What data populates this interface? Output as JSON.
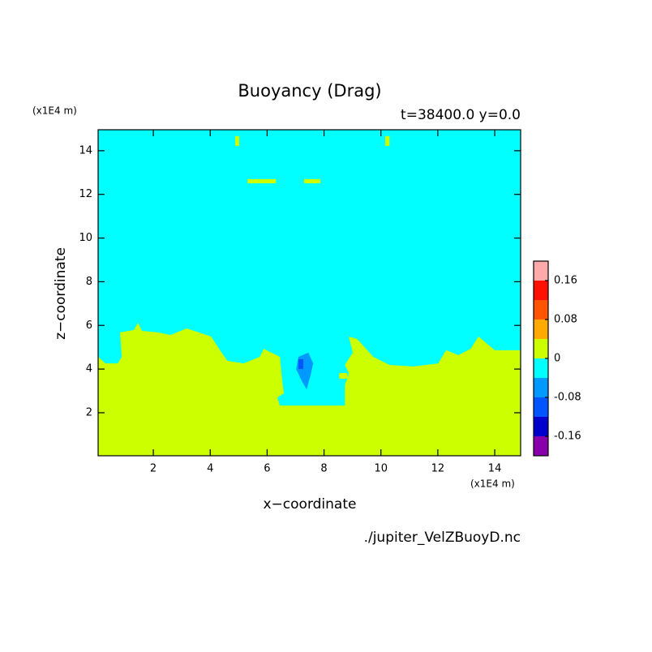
{
  "chart_data": {
    "type": "contour",
    "title": "Buoyancy (Drag)",
    "subtitle": "t=38400.0 y=0.0",
    "x_label": "x−coordinate",
    "y_label": "z−coordinate",
    "x_unit": "(x1E4 m)",
    "y_unit": "(x1E4 m)",
    "footer": "./jupiter_VelZBuoyD.nc",
    "xlim": [
      0.06,
      14.91
    ],
    "ylim": [
      0.03,
      14.96
    ],
    "xticks": [
      2,
      4,
      6,
      8,
      10,
      12,
      14
    ],
    "yticks": [
      2,
      4,
      6,
      8,
      10,
      12,
      14
    ],
    "levels": [
      -0.2,
      -0.16,
      -0.12,
      -0.08,
      -0.04,
      0,
      0.04,
      0.08,
      0.12,
      0.16,
      0.2
    ],
    "colors": [
      "#8800aa",
      "#0000cc",
      "#0055ff",
      "#0099ff",
      "#00ffff",
      "#ccff00",
      "#ffaa00",
      "#ff5500",
      "#ff1100",
      "#ffaaaa"
    ],
    "colorbar_ticks": [
      0.16,
      0.08,
      0,
      -0.08,
      -0.16
    ],
    "regions": [
      {
        "range": [
          -0.04,
          0
        ],
        "polygon": [
          [
            0.06,
            0.03
          ],
          [
            14.91,
            0.03
          ],
          [
            14.91,
            14.96
          ],
          [
            0.06,
            14.96
          ]
        ]
      },
      {
        "range": [
          0,
          0.04
        ],
        "polygon": [
          [
            0.06,
            4.56
          ],
          [
            0.32,
            4.26
          ],
          [
            0.75,
            4.26
          ],
          [
            0.89,
            4.56
          ],
          [
            0.83,
            5.68
          ],
          [
            1.32,
            5.79
          ],
          [
            1.46,
            6.12
          ],
          [
            1.6,
            5.75
          ],
          [
            2.17,
            5.68
          ],
          [
            2.6,
            5.56
          ],
          [
            3.17,
            5.86
          ],
          [
            3.6,
            5.68
          ],
          [
            4.03,
            5.49
          ],
          [
            4.31,
            4.93
          ],
          [
            4.6,
            4.38
          ],
          [
            5.17,
            4.26
          ],
          [
            5.74,
            4.56
          ],
          [
            5.88,
            4.93
          ],
          [
            6.45,
            4.56
          ],
          [
            6.53,
            3.45
          ],
          [
            6.59,
            2.89
          ],
          [
            6.36,
            2.7
          ],
          [
            6.45,
            2.33
          ],
          [
            8.02,
            2.33
          ],
          [
            8.73,
            2.33
          ],
          [
            8.73,
            3.26
          ],
          [
            8.87,
            3.82
          ],
          [
            8.73,
            4.19
          ],
          [
            9.01,
            4.75
          ],
          [
            8.87,
            5.49
          ],
          [
            9.16,
            5.38
          ],
          [
            9.73,
            4.56
          ],
          [
            10.3,
            4.19
          ],
          [
            11.15,
            4.12
          ],
          [
            12.01,
            4.26
          ],
          [
            12.29,
            4.86
          ],
          [
            12.72,
            4.64
          ],
          [
            13.15,
            4.93
          ],
          [
            13.43,
            5.49
          ],
          [
            14.0,
            4.86
          ],
          [
            14.57,
            4.86
          ],
          [
            14.91,
            4.86
          ],
          [
            14.91,
            0.03
          ],
          [
            0.06,
            0.03
          ]
        ]
      },
      {
        "range": [
          -0.04,
          0
        ],
        "polygon": [
          [
            8.53,
            3.89
          ],
          [
            8.82,
            3.89
          ],
          [
            8.82,
            3.52
          ],
          [
            8.53,
            3.52
          ]
        ]
      },
      {
        "range": [
          0,
          0.04
        ],
        "polygon": [
          [
            8.53,
            3.82
          ],
          [
            8.82,
            3.82
          ],
          [
            8.82,
            3.56
          ],
          [
            8.53,
            3.56
          ]
        ]
      },
      {
        "range": [
          0,
          0.04
        ],
        "polygon": [
          [
            5.31,
            12.7
          ],
          [
            6.31,
            12.7
          ],
          [
            6.31,
            12.51
          ],
          [
            5.31,
            12.51
          ]
        ]
      },
      {
        "range": [
          0,
          0.04
        ],
        "polygon": [
          [
            7.3,
            12.7
          ],
          [
            7.87,
            12.7
          ],
          [
            7.87,
            12.51
          ],
          [
            7.3,
            12.51
          ]
        ]
      },
      {
        "range": [
          0,
          0.04
        ],
        "polygon": [
          [
            4.88,
            14.67
          ],
          [
            5.02,
            14.67
          ],
          [
            5.02,
            14.22
          ],
          [
            4.88,
            14.22
          ]
        ]
      },
      {
        "range": [
          0,
          0.04
        ],
        "polygon": [
          [
            10.15,
            14.67
          ],
          [
            10.3,
            14.67
          ],
          [
            10.3,
            14.22
          ],
          [
            10.15,
            14.22
          ]
        ]
      },
      {
        "range": [
          -0.08,
          -0.04
        ],
        "polygon": [
          [
            7.1,
            4.56
          ],
          [
            7.45,
            4.75
          ],
          [
            7.62,
            4.26
          ],
          [
            7.53,
            3.74
          ],
          [
            7.39,
            3.07
          ],
          [
            7.22,
            3.45
          ],
          [
            7.02,
            4.0
          ]
        ]
      },
      {
        "range": [
          -0.12,
          -0.08
        ],
        "polygon": [
          [
            7.1,
            4.45
          ],
          [
            7.27,
            4.45
          ],
          [
            7.27,
            4.0
          ],
          [
            7.1,
            4.0
          ]
        ]
      }
    ]
  }
}
